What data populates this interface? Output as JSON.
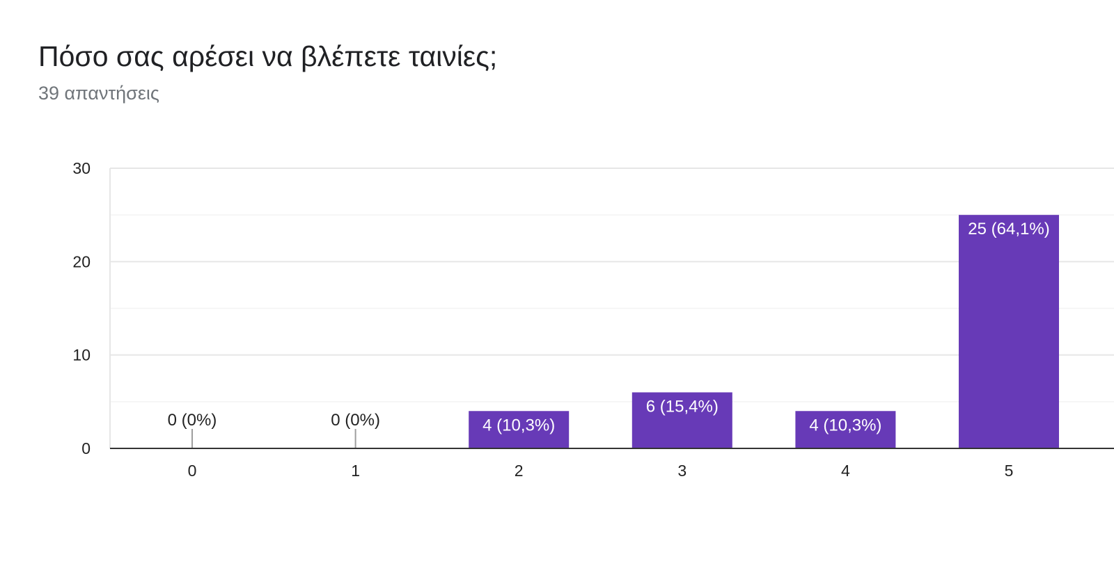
{
  "title": "Πόσο σας αρέσει να βλέπετε ταινίες;",
  "subtitle": "39 απαντήσεις",
  "chart_data": {
    "type": "bar",
    "categories": [
      "0",
      "1",
      "2",
      "3",
      "4",
      "5"
    ],
    "values": [
      0,
      0,
      4,
      6,
      4,
      25
    ],
    "data_labels": [
      "0 (0%)",
      "0 (0%)",
      "4 (10,3%)",
      "6 (15,4%)",
      "4 (10,3%)",
      "25 (64,1%)"
    ],
    "ylim": [
      0,
      30
    ],
    "yticks": [
      0,
      10,
      20,
      30
    ],
    "grid": true,
    "bar_color": "#673ab7"
  }
}
